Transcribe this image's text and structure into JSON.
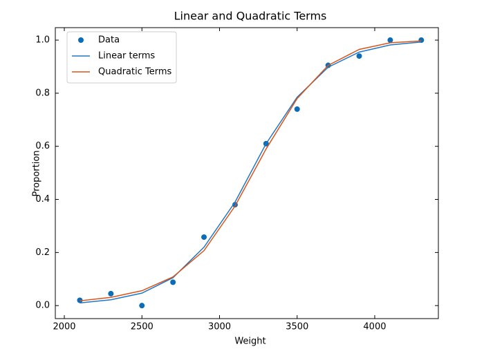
{
  "chart_data": {
    "type": "scatter-line",
    "title": "Linear and Quadratic Terms",
    "xlabel": "Weight",
    "ylabel": "Proportion",
    "x": [
      2100,
      2300,
      2500,
      2700,
      2900,
      3100,
      3300,
      3500,
      3700,
      3900,
      4100,
      4300
    ],
    "series": [
      {
        "name": "Data",
        "kind": "scatter",
        "color": "#0b6db7",
        "values": [
          0.02,
          0.045,
          0.0,
          0.088,
          0.258,
          0.38,
          0.61,
          0.74,
          0.905,
          0.94,
          1.0,
          1.0
        ]
      },
      {
        "name": "Linear terms",
        "kind": "line",
        "color": "#1f77c4",
        "values": [
          0.01,
          0.022,
          0.047,
          0.105,
          0.22,
          0.39,
          0.61,
          0.785,
          0.898,
          0.955,
          0.982,
          0.993
        ]
      },
      {
        "name": "Quadratic Terms",
        "kind": "line",
        "color": "#d95319",
        "values": [
          0.018,
          0.031,
          0.056,
          0.108,
          0.207,
          0.375,
          0.59,
          0.78,
          0.905,
          0.965,
          0.99,
          0.997
        ]
      }
    ],
    "xlim": [
      1942,
      4410
    ],
    "ylim": [
      -0.049,
      1.047
    ],
    "xticks": [
      2000,
      2500,
      3000,
      3500,
      4000
    ],
    "yticks": [
      {
        "value": 0,
        "label": "0.0"
      },
      {
        "value": 0.2,
        "label": "0.2"
      },
      {
        "value": 0.4,
        "label": "0.4"
      },
      {
        "value": 0.6,
        "label": "0.6"
      },
      {
        "value": 0.8,
        "label": "0.8"
      },
      {
        "value": 1,
        "label": "1.0"
      }
    ],
    "legend": "upper left",
    "grid": false
  }
}
